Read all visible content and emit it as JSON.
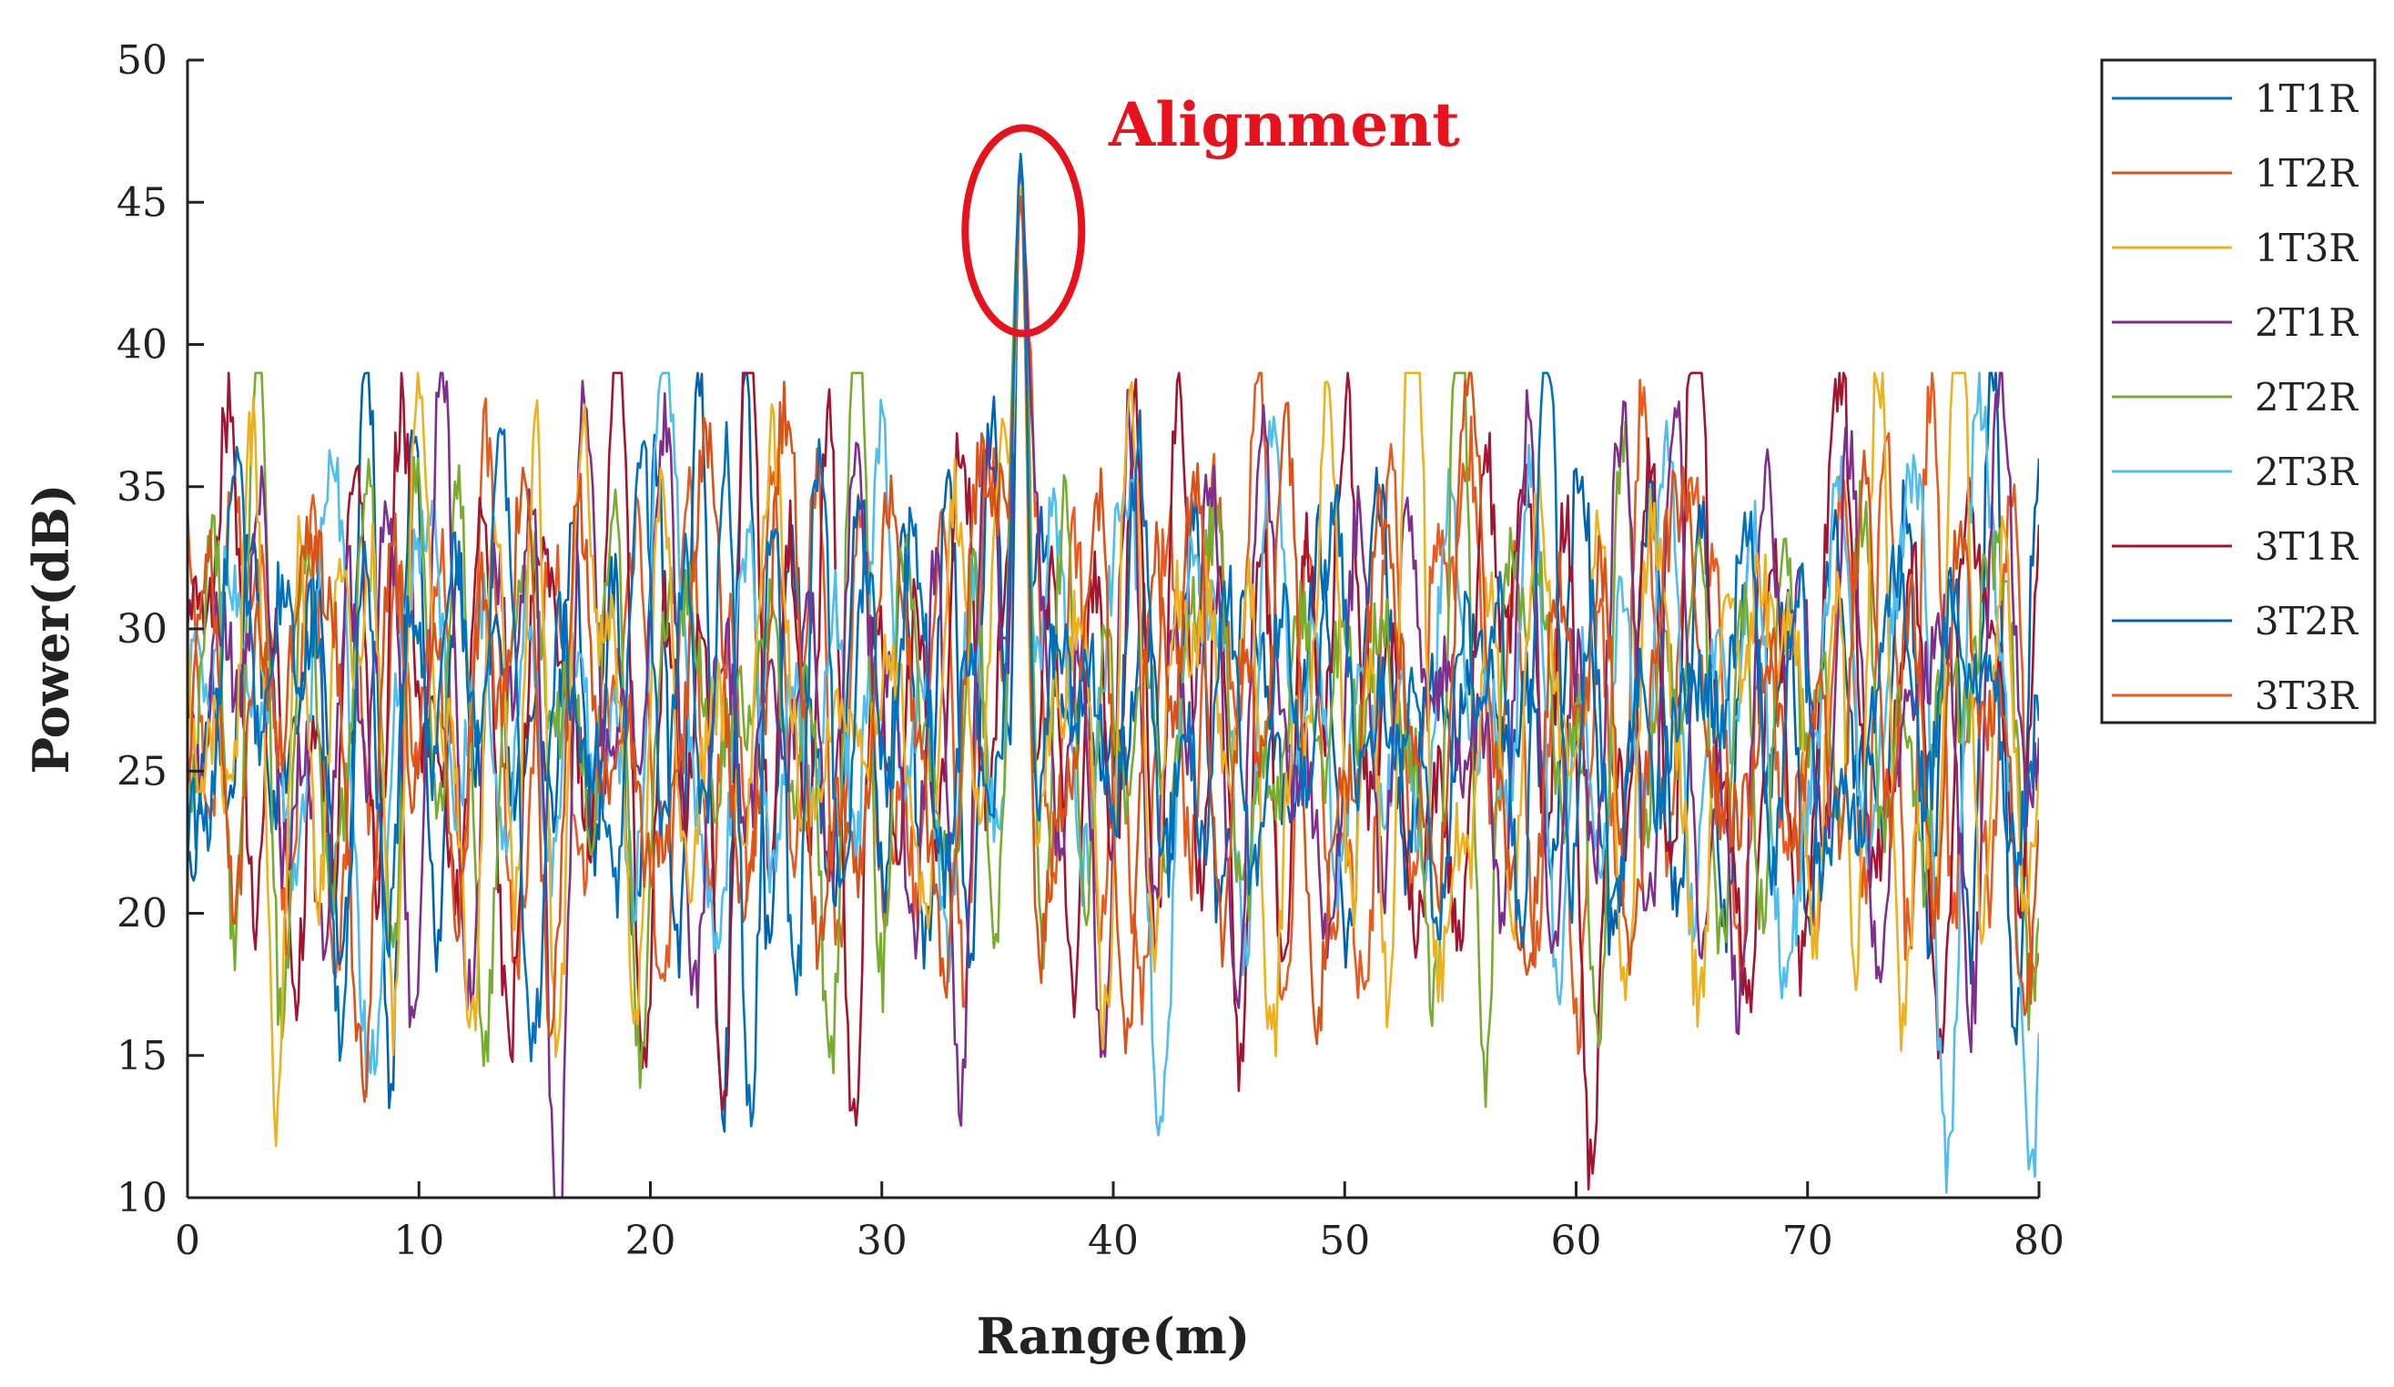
{
  "chart_data": {
    "type": "line",
    "xlabel": "Range(m)",
    "ylabel": "Power(dB)",
    "xlim": [
      0,
      80
    ],
    "ylim": [
      10,
      50
    ],
    "xticks": [
      0,
      10,
      20,
      30,
      40,
      50,
      60,
      70,
      80
    ],
    "yticks": [
      10,
      15,
      20,
      25,
      30,
      35,
      40,
      45,
      50
    ],
    "grid": false,
    "legend_position": "top-right outside",
    "annotation": {
      "text": "Alignment",
      "color": "#e8121c",
      "x": 36,
      "y": 44
    },
    "peak": {
      "x": 36,
      "y": 46.7
    },
    "series": [
      {
        "name": "1T1R",
        "color": "#0072BD",
        "peak": 46.7
      },
      {
        "name": "1T2R",
        "color": "#D95319",
        "peak": 45.2
      },
      {
        "name": "1T3R",
        "color": "#EDB120",
        "peak": 45.6
      },
      {
        "name": "2T1R",
        "color": "#7E2F8E",
        "peak": 46.3
      },
      {
        "name": "2T2R",
        "color": "#77AC30",
        "peak": 45.0
      },
      {
        "name": "2T3R",
        "color": "#4DBEEE",
        "peak": 45.8
      },
      {
        "name": "3T1R",
        "color": "#A2142F",
        "peak": 45.4
      },
      {
        "name": "3T2R",
        "color": "#0063B0",
        "peak": 46.0
      },
      {
        "name": "3T3R",
        "color": "#E85A1E",
        "peak": 45.3
      }
    ]
  }
}
